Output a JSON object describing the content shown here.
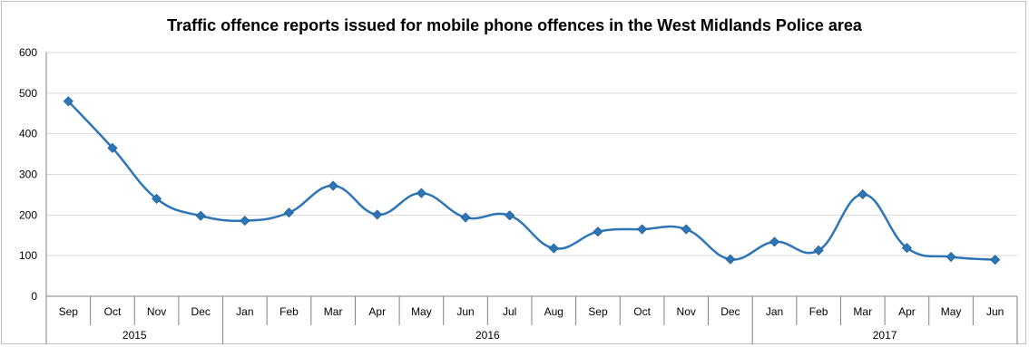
{
  "chart_data": {
    "type": "line",
    "title": "Traffic offence reports issued for mobile phone offences in the West Midlands Police area",
    "xlabel": "",
    "ylabel": "",
    "ylim": [
      0,
      600
    ],
    "yticks": [
      0,
      100,
      200,
      300,
      400,
      500,
      600
    ],
    "grid": true,
    "legend": "none",
    "categories": [
      "Sep",
      "Oct",
      "Nov",
      "Dec",
      "Jan",
      "Feb",
      "Mar",
      "Apr",
      "May",
      "Jun",
      "Jul",
      "Aug",
      "Sep",
      "Oct",
      "Nov",
      "Dec",
      "Jan",
      "Feb",
      "Mar",
      "Apr",
      "May",
      "Jun"
    ],
    "year_groups": [
      {
        "label": "2015",
        "count": 4
      },
      {
        "label": "2016",
        "count": 12
      },
      {
        "label": "2017",
        "count": 6
      }
    ],
    "series": [
      {
        "values": [
          480,
          365,
          240,
          198,
          186,
          206,
          272,
          201,
          254,
          194,
          199,
          118,
          159,
          165,
          165,
          91,
          134,
          113,
          251,
          119,
          97,
          90
        ]
      }
    ],
    "colors": {
      "line": "#2e75b6",
      "marker": "#2e75b6",
      "grid": "#d9d9d9",
      "axis": "#808080"
    }
  }
}
